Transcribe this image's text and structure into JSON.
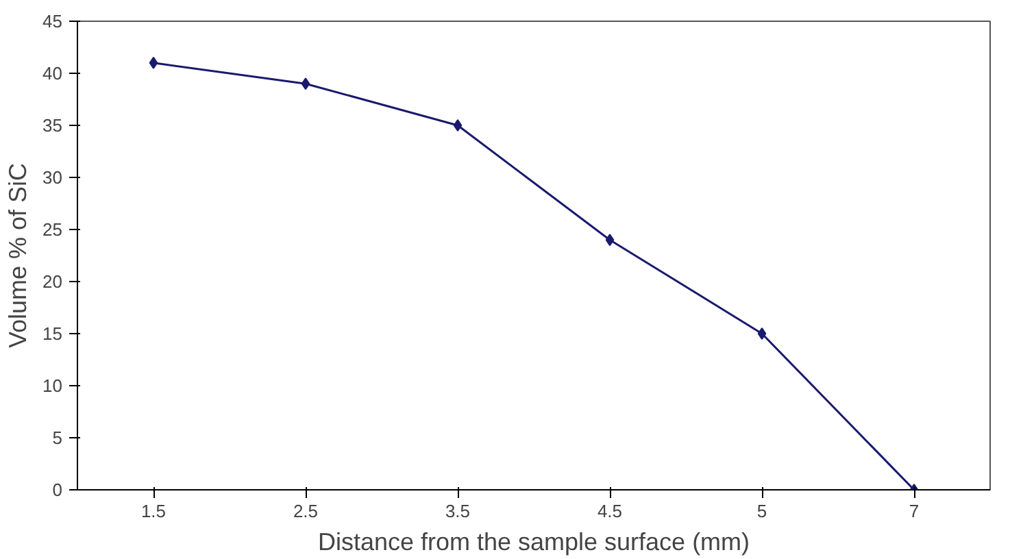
{
  "chart_data": {
    "type": "line",
    "xlabel": "Distance from the sample surface (mm)",
    "ylabel": "Volume % of SiC",
    "categories": [
      "1.5",
      "2.5",
      "3.5",
      "4.5",
      "5",
      "7"
    ],
    "series": [
      {
        "color": "#1a1a6e",
        "values": [
          41,
          39,
          35,
          24,
          15,
          0
        ]
      }
    ],
    "ylim": [
      0,
      45
    ],
    "yticks": [
      0,
      5,
      10,
      15,
      20,
      25,
      30,
      35,
      40,
      45
    ],
    "grid": false,
    "marker": "diamond",
    "line_style": "solid"
  }
}
